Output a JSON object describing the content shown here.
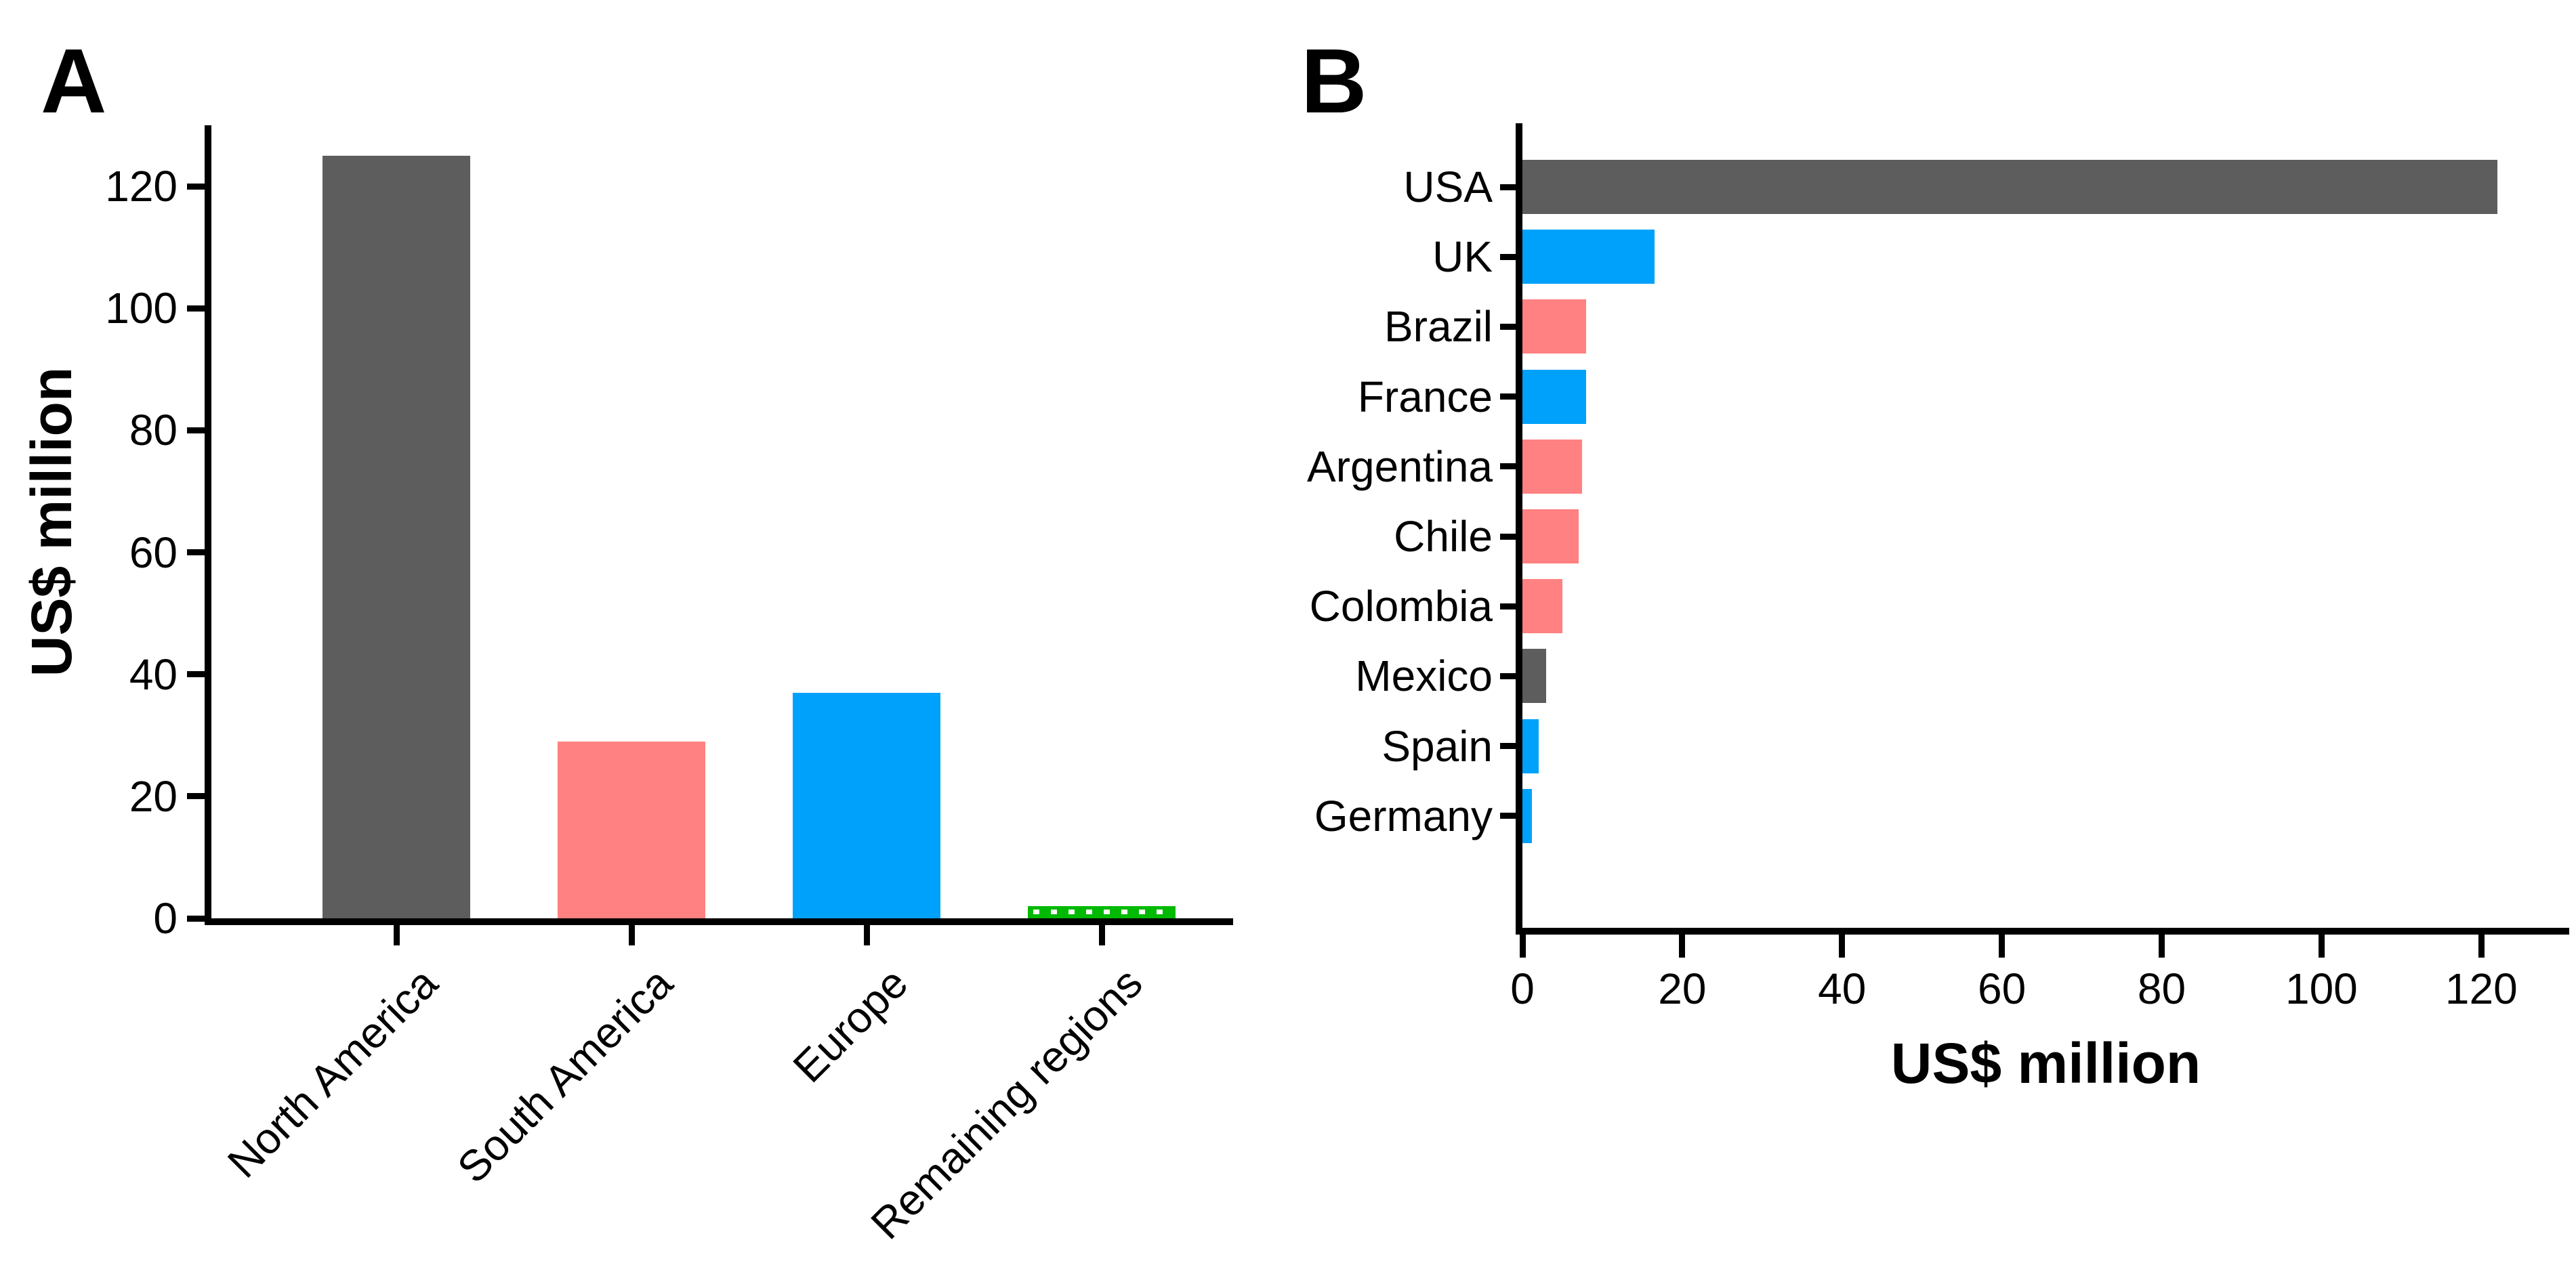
{
  "figure": {
    "background_color": "#ffffff",
    "axis_color": "#000000",
    "region_colors": {
      "north_america_gray": "#5D5D5D",
      "south_america_pink": "#FF8181",
      "europe_blue": "#00A1FB",
      "remaining_green": "#00B901"
    }
  },
  "chart_data": [
    {
      "type": "bar",
      "panel_letter": "A",
      "orientation": "vertical",
      "title": "",
      "xlabel": "",
      "ylabel": "US$ million",
      "categories": [
        "North America",
        "South America",
        "Europe",
        "Remaining regions"
      ],
      "values": [
        125,
        29,
        37,
        2
      ],
      "bar_colors": [
        "#5D5D5D",
        "#FF8181",
        "#00A1FB",
        "#00B901"
      ],
      "dotted_pattern": [
        false,
        false,
        false,
        true
      ],
      "yticks": [
        0,
        20,
        40,
        60,
        80,
        100,
        120
      ],
      "ylim": [
        0,
        130
      ],
      "grid": false,
      "legend": "none"
    },
    {
      "type": "bar",
      "panel_letter": "B",
      "orientation": "horizontal",
      "title": "",
      "xlabel": "US$ million",
      "ylabel": "",
      "categories": [
        "USA",
        "UK",
        "Brazil",
        "France",
        "Argentina",
        "Chile",
        "Colombia",
        "Mexico",
        "Spain",
        "Germany"
      ],
      "values": [
        122,
        16.5,
        8,
        8,
        7.5,
        7,
        5,
        3,
        2,
        1.2
      ],
      "bar_colors": [
        "#5D5D5D",
        "#00A1FB",
        "#FF8181",
        "#00A1FB",
        "#FF8181",
        "#FF8181",
        "#FF8181",
        "#5D5D5D",
        "#00A1FB",
        "#00A1FB"
      ],
      "dotted_pattern": [
        false,
        false,
        false,
        false,
        false,
        false,
        false,
        false,
        false,
        false
      ],
      "xticks": [
        0,
        20,
        40,
        60,
        80,
        100,
        120
      ],
      "xlim": [
        0,
        131
      ],
      "grid": false,
      "legend": "none"
    }
  ]
}
